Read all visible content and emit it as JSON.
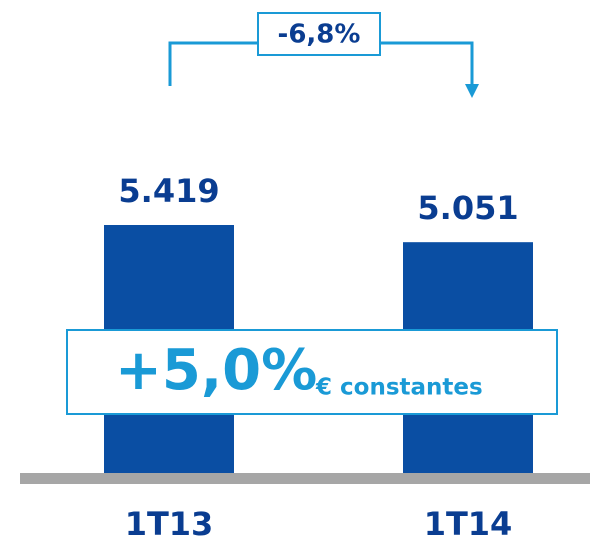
{
  "chart_data": {
    "type": "bar",
    "categories": [
      "1T13",
      "1T14"
    ],
    "values": [
      5419,
      5051
    ],
    "value_labels": [
      "5.419",
      "5.051"
    ],
    "color": "#0a4ea3",
    "change_label": "-6,8%",
    "constant_change": "+5,0%",
    "constant_note": "€ constantes"
  }
}
